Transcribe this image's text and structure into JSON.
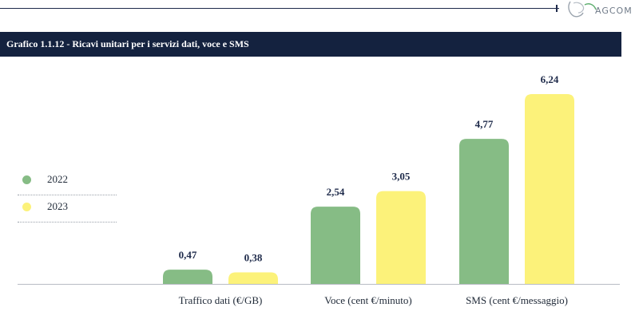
{
  "header": {
    "logo_text": "AGCOM"
  },
  "chart_data": {
    "type": "bar",
    "title": "Grafico 1.1.12 - Ricavi unitari per i servizi dati, voce e SMS",
    "categories": [
      "Traffico dati (€/GB)",
      "Voce (cent €/minuto)",
      "SMS (cent €/messaggio)"
    ],
    "series": [
      {
        "name": "2022",
        "values": [
          0.47,
          2.54,
          4.77
        ],
        "color": "#86bc85",
        "labels": [
          "0,47",
          "2,54",
          "4,77"
        ]
      },
      {
        "name": "2023",
        "values": [
          0.38,
          3.05,
          6.24
        ],
        "color": "#fcf27a",
        "labels": [
          "0,38",
          "3,05",
          "6,24"
        ]
      }
    ],
    "ylim": [
      0,
      6.24
    ],
    "grid": false,
    "legend_position": "left"
  }
}
